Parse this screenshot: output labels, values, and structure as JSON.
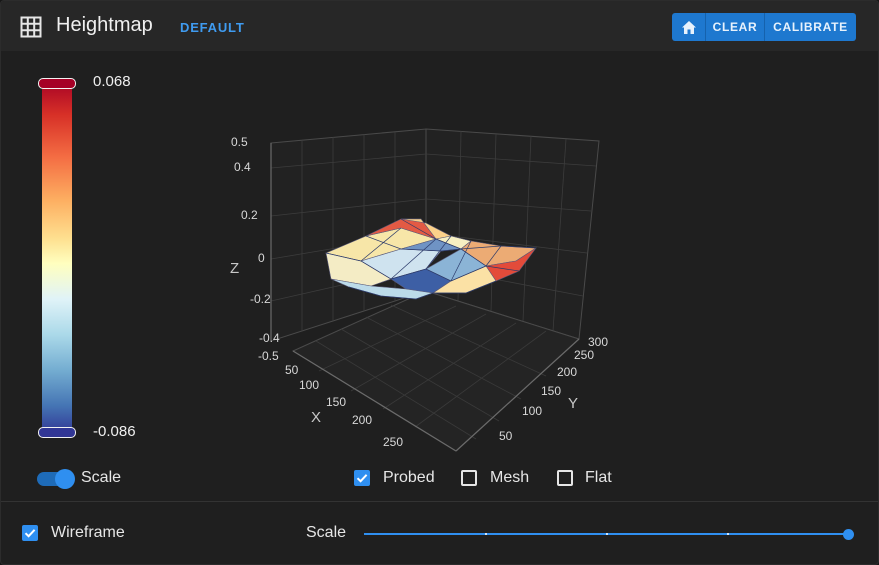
{
  "header": {
    "title": "Heightmap",
    "profile": "DEFAULT",
    "buttons": {
      "home_icon": "home-icon",
      "clear": "CLEAR",
      "calibrate": "CALIBRATE"
    }
  },
  "legend": {
    "max": "0.068",
    "min": "-0.086"
  },
  "plot": {
    "z_axis_title": "Z",
    "x_axis_title": "X",
    "y_axis_title": "Y",
    "z_ticks": [
      "0.5",
      "0.4",
      "0.2",
      "0",
      "-0.2",
      "-0.4",
      "-0.5"
    ],
    "x_ticks": [
      "50",
      "100",
      "150",
      "200",
      "250"
    ],
    "y_ticks": [
      "300",
      "250",
      "200",
      "150",
      "100",
      "50"
    ],
    "colorscale": [
      "#313695",
      "#4575b4",
      "#74add1",
      "#abd9e9",
      "#e0f3f8",
      "#ffffbf",
      "#fee090",
      "#fdae61",
      "#f46d43",
      "#d73027",
      "#a50026"
    ]
  },
  "controls": {
    "scale_toggle": {
      "label": "Scale",
      "checked": true
    },
    "probed": {
      "label": "Probed",
      "checked": true
    },
    "mesh": {
      "label": "Mesh",
      "checked": false
    },
    "flat": {
      "label": "Flat",
      "checked": false
    }
  },
  "footer": {
    "wireframe": {
      "label": "Wireframe",
      "checked": true
    },
    "scale_slider": {
      "label": "Scale",
      "value_fraction": 1.0
    }
  }
}
